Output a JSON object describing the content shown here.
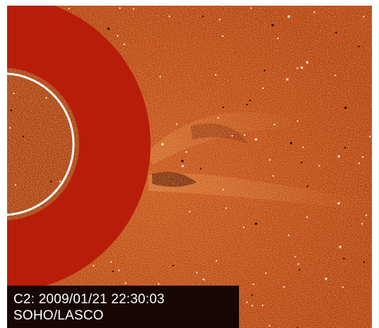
{
  "image": {
    "subject": "LASCO C2 coronagraph observation",
    "colors": {
      "background": "#b33a0c",
      "occulter": "#b81d0a",
      "sun_outline": "#ffffff",
      "caption_background": "#170604",
      "caption_text": "#ffffff"
    }
  },
  "caption": {
    "line1": "C2: 2009/01/21 22:30:03",
    "line2": "SOHO/LASCO"
  }
}
